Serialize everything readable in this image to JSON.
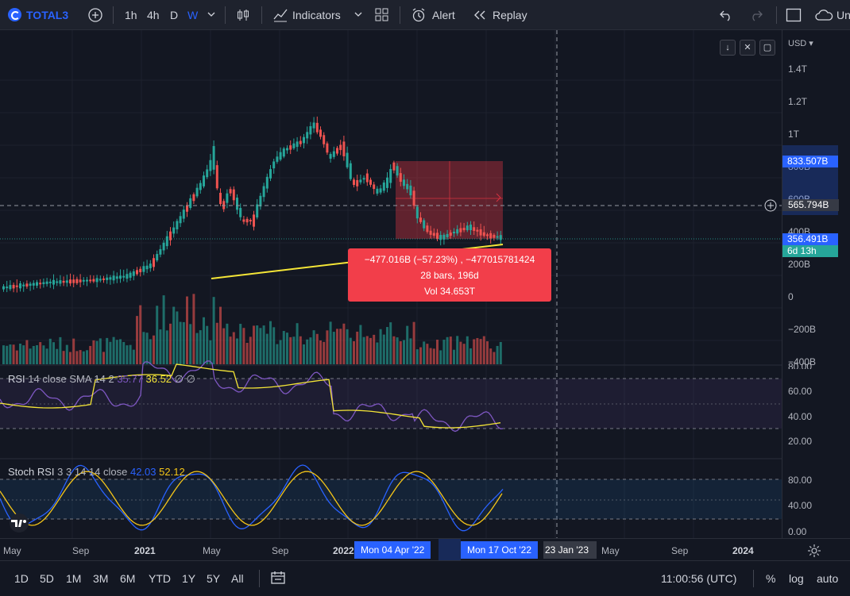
{
  "toolbar": {
    "symbol": "TOTAL3",
    "intervals": [
      "1h",
      "4h",
      "D",
      "W"
    ],
    "active_interval": "W",
    "indicators_label": "Indicators",
    "alert_label": "Alert",
    "replay_label": "Replay",
    "truncated_right": "Un"
  },
  "price_axis": {
    "currency": "USD",
    "labels": [
      "1.4T",
      "1.2T",
      "1T",
      "800B",
      "600B",
      "400B",
      "200B",
      "0",
      "−200B",
      "−400B"
    ],
    "marker_top": "833.507B",
    "marker_cross": "565.794B",
    "marker_last": "356.491B",
    "countdown": "6d 13h"
  },
  "rsi_axis": [
    "80.00",
    "60.00",
    "40.00",
    "20.00"
  ],
  "stoch_axis": [
    "80.00",
    "40.00",
    "0.00"
  ],
  "legends": {
    "rsi_label": "RSI",
    "rsi_params": "14 close SMA 14 2",
    "rsi_value_1": "35.77",
    "rsi_value_2": "36.52",
    "rsi_na": "∅ ∅",
    "stoch_label": "Stoch RSI",
    "stoch_params": "3 3 14 14 close",
    "stoch_k": "42.03",
    "stoch_d": "52.12"
  },
  "measure_tooltip": {
    "line1": "−477.016B (−57.23%) , −477015781424",
    "line2": "28 bars, 196d",
    "line3": "Vol 34.653T"
  },
  "time_axis": {
    "labels": [
      "May",
      "Sep",
      "2021",
      "May",
      "Sep",
      "2022",
      "May",
      "Sep",
      "2024"
    ],
    "marker_start": "Mon 04 Apr '22",
    "marker_end": "Mon 17 Oct '22",
    "marker_cross": "23 Jan '23"
  },
  "bottom": {
    "ranges": [
      "1D",
      "5D",
      "1M",
      "3M",
      "6M",
      "YTD",
      "1Y",
      "5Y",
      "All"
    ],
    "clock": "11:00:56 (UTC)",
    "percent": "%",
    "log": "log",
    "auto": "auto"
  },
  "colors": {
    "up": "#26a69a",
    "down": "#ef5350",
    "accent": "#2962ff",
    "rsi_line": "#7e57c2",
    "rsi_ma": "#f5e637",
    "tooltip": "#f23e4a"
  }
}
